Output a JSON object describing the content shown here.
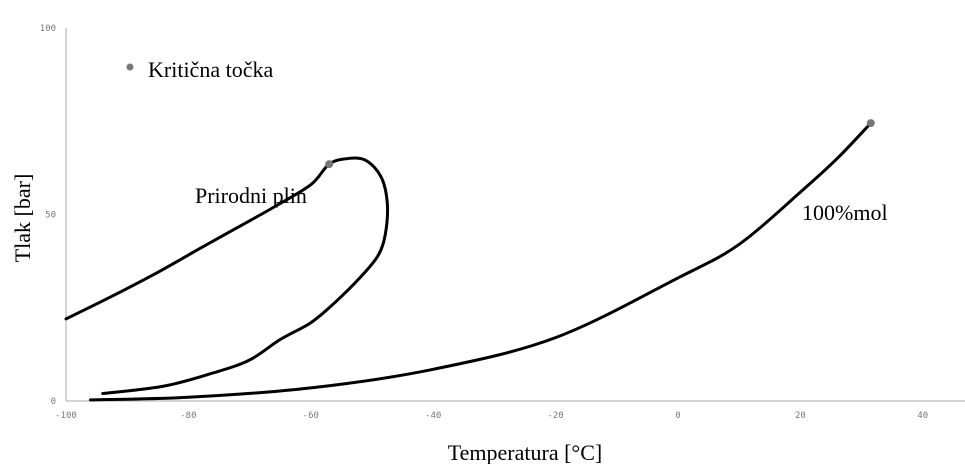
{
  "chart_data": {
    "type": "line",
    "title": "",
    "xlabel": "Temperatura [°C]",
    "ylabel": "Tlak [bar]",
    "xlim": [
      -100,
      50
    ],
    "ylim": [
      0,
      100
    ],
    "xticks": [
      -100,
      -80,
      -60,
      -40,
      -20,
      0,
      20,
      40
    ],
    "yticks": [
      0,
      50,
      100
    ],
    "grid": false,
    "legend": {
      "label": "Kritična točka",
      "position": "top-left",
      "marker": "dot"
    },
    "series": [
      {
        "name": "Prirodni plin",
        "color": "#000000",
        "points": [
          [
            -100,
            22
          ],
          [
            -92,
            28.5
          ],
          [
            -85,
            34.5
          ],
          [
            -78,
            41
          ],
          [
            -72,
            46.5
          ],
          [
            -66,
            52
          ],
          [
            -60,
            58
          ],
          [
            -57,
            63.5
          ],
          [
            -54,
            65
          ],
          [
            -51,
            64.5
          ],
          [
            -48.5,
            60
          ],
          [
            -47.5,
            53
          ],
          [
            -47.8,
            45
          ],
          [
            -49,
            39
          ],
          [
            -52,
            33
          ],
          [
            -56,
            26.5
          ],
          [
            -60,
            21
          ],
          [
            -65,
            16.5
          ],
          [
            -70,
            11
          ],
          [
            -76,
            7.5
          ],
          [
            -84,
            4
          ],
          [
            -94,
            2
          ]
        ]
      },
      {
        "name": "100%mol",
        "color": "#000000",
        "points": [
          [
            -96,
            0.3
          ],
          [
            -80,
            1
          ],
          [
            -60,
            3.5
          ],
          [
            -40,
            8.5
          ],
          [
            -20,
            17
          ],
          [
            0,
            33
          ],
          [
            10,
            42
          ],
          [
            20,
            56
          ],
          [
            26,
            65
          ],
          [
            31.5,
            74.5
          ]
        ]
      }
    ],
    "critical_points": [
      {
        "series": "Prirodni plin",
        "x": -57,
        "y": 63.5
      },
      {
        "series": "100%mol",
        "x": 31.5,
        "y": 74.5
      }
    ],
    "annotations": [
      {
        "text": "Prirodni plin",
        "x": -76,
        "y": 55
      },
      {
        "text": "100%mol",
        "x": 22,
        "y": 49.5
      }
    ]
  },
  "colors": {
    "axis": "#aaaaaa",
    "tick": "#777777",
    "line": "#000000",
    "marker": "#777777"
  }
}
